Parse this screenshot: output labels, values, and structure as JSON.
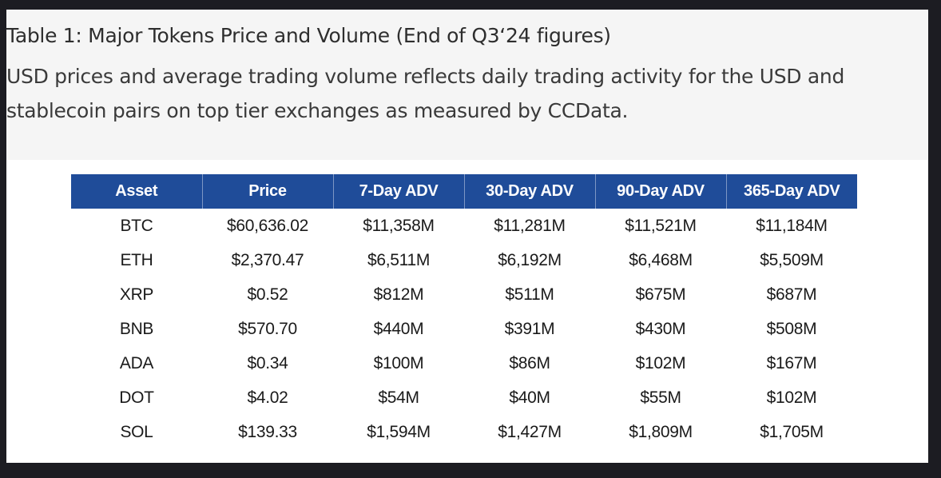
{
  "caption": {
    "title": "Table 1: Major Tokens Price and Volume (End of Q3‘24 figures)",
    "description": "USD prices and average trading volume reflects daily trading activity for the USD and stablecoin pairs on top tier exchanges as measured by CCData."
  },
  "table": {
    "headers": [
      "Asset",
      "Price",
      "7-Day ADV",
      "30-Day ADV",
      "90-Day ADV",
      "365-Day ADV"
    ],
    "rows": [
      [
        "BTC",
        "$60,636.02",
        "$11,358M",
        "$11,281M",
        "$11,521M",
        "$11,184M"
      ],
      [
        "ETH",
        "$2,370.47",
        "$6,511M",
        "$6,192M",
        "$6,468M",
        "$5,509M"
      ],
      [
        "XRP",
        "$0.52",
        "$812M",
        "$511M",
        "$675M",
        "$687M"
      ],
      [
        "BNB",
        "$570.70",
        "$440M",
        "$391M",
        "$430M",
        "$508M"
      ],
      [
        "ADA",
        "$0.34",
        "$100M",
        "$86M",
        "$102M",
        "$167M"
      ],
      [
        "DOT",
        "$4.02",
        "$54M",
        "$40M",
        "$55M",
        "$102M"
      ],
      [
        "SOL",
        "$139.33",
        "$1,594M",
        "$1,427M",
        "$1,809M",
        "$1,705M"
      ]
    ]
  },
  "colors": {
    "header_background": "#1f4c99",
    "header_text": "#ffffff",
    "caption_background": "#f5f5f5",
    "page_background": "#1c1c22"
  }
}
